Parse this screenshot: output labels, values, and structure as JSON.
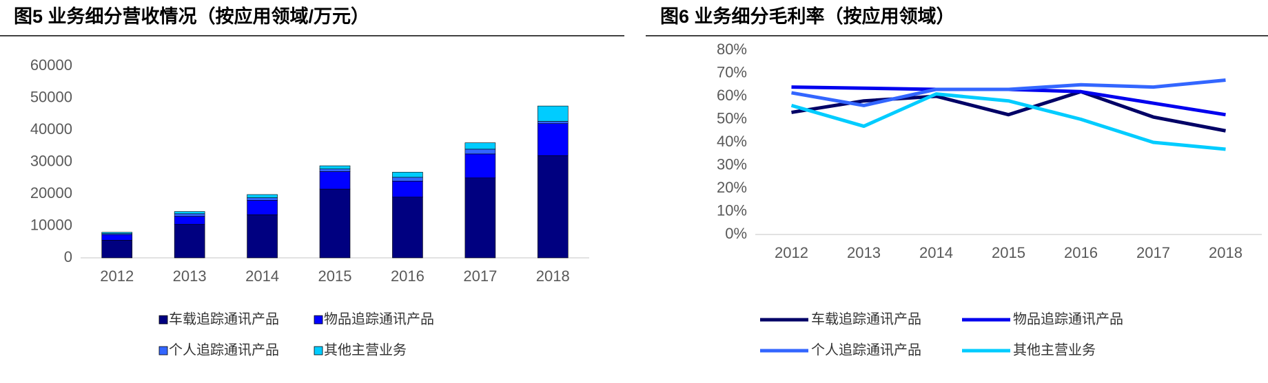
{
  "chart_data": [
    {
      "type": "bar",
      "stacked": true,
      "title": "图5  业务细分营收情况（按应用领域/万元）",
      "categories": [
        "2012",
        "2013",
        "2014",
        "2015",
        "2016",
        "2017",
        "2018"
      ],
      "series": [
        {
          "name": "车载追踪通讯产品",
          "color": "#000080",
          "values": [
            5500,
            10500,
            13500,
            21500,
            19000,
            25000,
            32000
          ]
        },
        {
          "name": "物品追踪通讯产品",
          "color": "#0000ff",
          "values": [
            1800,
            2500,
            4500,
            5500,
            5000,
            7500,
            10000
          ]
        },
        {
          "name": "个人追踪通讯产品",
          "color": "#3366ff",
          "values": [
            300,
            800,
            800,
            800,
            1200,
            1500,
            700
          ]
        },
        {
          "name": "其他主营业务",
          "color": "#00ccff",
          "values": [
            400,
            700,
            1000,
            1000,
            1600,
            2000,
            4800
          ]
        }
      ],
      "ylim": [
        0,
        60000
      ],
      "yticks": [
        0,
        10000,
        20000,
        30000,
        40000,
        50000,
        60000
      ],
      "grid": false
    },
    {
      "type": "line",
      "title": "图6  业务细分毛利率（按应用领域）",
      "categories": [
        "2012",
        "2013",
        "2014",
        "2015",
        "2016",
        "2017",
        "2018"
      ],
      "series": [
        {
          "name": "车载追踪通讯产品",
          "color": "#000066",
          "values": [
            53,
            58,
            60,
            52,
            62,
            51,
            45
          ]
        },
        {
          "name": "物品追踪通讯产品",
          "color": "#0000ee",
          "values": [
            64,
            63.5,
            63,
            63,
            62,
            57,
            52
          ]
        },
        {
          "name": "个人追踪通讯产品",
          "color": "#3366ff",
          "values": [
            61.5,
            56,
            63,
            63,
            65,
            64,
            67
          ]
        },
        {
          "name": "其他主营业务",
          "color": "#00ccff",
          "values": [
            56,
            47,
            61,
            58,
            50,
            40,
            37
          ]
        }
      ],
      "ylim": [
        0,
        80
      ],
      "yticks": [
        {
          "value": 0,
          "label": "0%"
        },
        {
          "value": 10,
          "label": "10%"
        },
        {
          "value": 20,
          "label": "20%"
        },
        {
          "value": 30,
          "label": "30%"
        },
        {
          "value": 40,
          "label": "40%"
        },
        {
          "value": 50,
          "label": "50%"
        },
        {
          "value": 60,
          "label": "60%"
        },
        {
          "value": 70,
          "label": "70%"
        },
        {
          "value": 80,
          "label": "80%"
        }
      ],
      "grid": false
    }
  ]
}
